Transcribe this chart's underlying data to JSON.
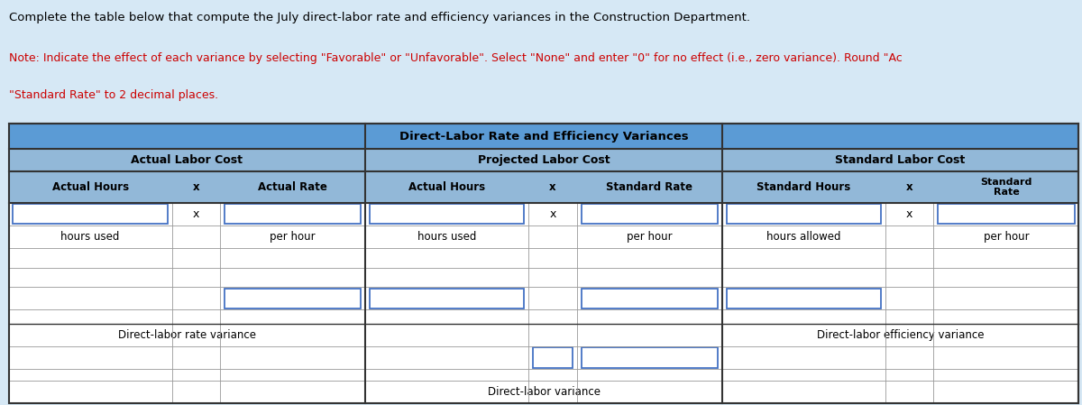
{
  "title_text": "Complete the table below that compute the July direct-labor rate and efficiency variances in the Construction Department.",
  "note_line1": "Note: Indicate the effect of each variance by selecting \"Favorable\" or \"Unfavorable\". Select \"None\" and enter \"0\" for no effect (i.e., zero variance). Round \"Ac",
  "note_line2": "\"Standard Rate\" to 2 decimal places.",
  "table_title": "Direct-Labor Rate and Efficiency Variances",
  "group_headers": [
    "Actual Labor Cost",
    "Projected Labor Cost",
    "Standard Labor Cost"
  ],
  "sub_headers": [
    "Actual Hours",
    "x",
    "Actual Rate",
    "Actual Hours",
    "x",
    "Standard Rate",
    "Standard Hours",
    "x",
    "Standard\nRate"
  ],
  "row_x_labels": [
    "x",
    "x",
    "x"
  ],
  "row_text_labels": [
    "hours used",
    "per hour",
    "hours used",
    "per hour",
    "hours allowed",
    "per hour"
  ],
  "rate_variance_label": "Direct-labor rate variance",
  "efficiency_variance_label": "Direct-labor efficiency variance",
  "direct_labor_variance_label": "Direct-labor variance",
  "header_blue": "#5b9bd5",
  "subheader_blue": "#92b8d8",
  "fig_bg": "#d6e8f5",
  "white": "#ffffff",
  "input_border": "#4472c4",
  "dark_line": "#333333",
  "light_line": "#999999",
  "text_black": "#000000",
  "text_red": "#cc0000"
}
